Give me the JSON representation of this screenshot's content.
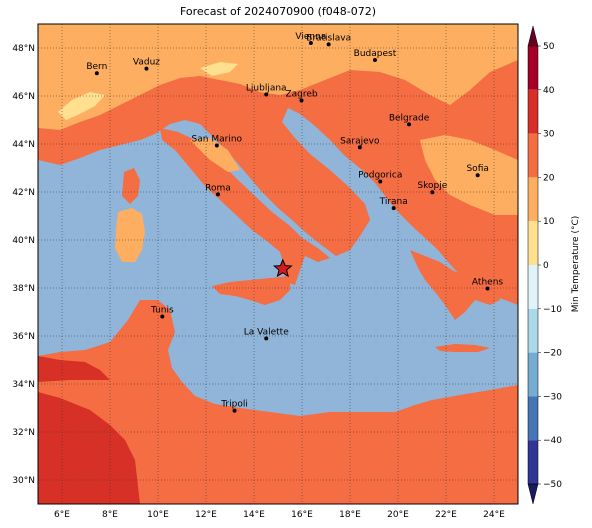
{
  "title": "Forecast of 2024070900 (f048-072)",
  "map": {
    "lon_range": [
      5,
      25
    ],
    "lat_range": [
      29,
      49
    ],
    "lon_ticks": [
      {
        "value": 6,
        "label": "6°E"
      },
      {
        "value": 8,
        "label": "8°E"
      },
      {
        "value": 10,
        "label": "10°E"
      },
      {
        "value": 12,
        "label": "12°E"
      },
      {
        "value": 14,
        "label": "14°E"
      },
      {
        "value": 16,
        "label": "16°E"
      },
      {
        "value": 18,
        "label": "18°E"
      },
      {
        "value": 20,
        "label": "20°E"
      },
      {
        "value": 22,
        "label": "22°E"
      },
      {
        "value": 24,
        "label": "24°E"
      }
    ],
    "lat_ticks": [
      {
        "value": 48,
        "label": "48°N"
      },
      {
        "value": 46,
        "label": "46°N"
      },
      {
        "value": 44,
        "label": "44°N"
      },
      {
        "value": 42,
        "label": "42°N"
      },
      {
        "value": 40,
        "label": "40°N"
      },
      {
        "value": 38,
        "label": "38°N"
      },
      {
        "value": 36,
        "label": "36°N"
      },
      {
        "value": 34,
        "label": "34°N"
      },
      {
        "value": 32,
        "label": "32°N"
      },
      {
        "value": 30,
        "label": "30°N"
      }
    ],
    "cities": [
      {
        "name": "Bern",
        "lon": 7.45,
        "lat": 46.95
      },
      {
        "name": "Vaduz",
        "lon": 9.52,
        "lat": 47.14
      },
      {
        "name": "Vienna",
        "lon": 16.37,
        "lat": 48.21
      },
      {
        "name": "Bratislava",
        "lon": 17.11,
        "lat": 48.15
      },
      {
        "name": "Budapest",
        "lon": 19.04,
        "lat": 47.5
      },
      {
        "name": "Ljubljana",
        "lon": 14.51,
        "lat": 46.06
      },
      {
        "name": "Zagreb",
        "lon": 15.98,
        "lat": 45.81
      },
      {
        "name": "San Marino",
        "lon": 12.45,
        "lat": 43.94
      },
      {
        "name": "Belgrade",
        "lon": 20.46,
        "lat": 44.82
      },
      {
        "name": "Sarajevo",
        "lon": 18.41,
        "lat": 43.86
      },
      {
        "name": "Sofia",
        "lon": 23.32,
        "lat": 42.7
      },
      {
        "name": "Podgorica",
        "lon": 19.26,
        "lat": 42.44
      },
      {
        "name": "Skopje",
        "lon": 21.43,
        "lat": 41.99
      },
      {
        "name": "Roma",
        "lon": 12.5,
        "lat": 41.9
      },
      {
        "name": "Tirana",
        "lon": 19.82,
        "lat": 41.33
      },
      {
        "name": "Athens",
        "lon": 23.73,
        "lat": 37.98
      },
      {
        "name": "Tunis",
        "lon": 10.18,
        "lat": 36.81
      },
      {
        "name": "La Valette",
        "lon": 14.51,
        "lat": 35.9
      },
      {
        "name": "Tripoli",
        "lon": 13.19,
        "lat": 32.89
      }
    ],
    "marker": {
      "name": "star-marker",
      "lon": 15.2,
      "lat": 38.8,
      "color": "#d7191c"
    }
  },
  "colorbar": {
    "label": "Min Temperature (°C)",
    "ticks": [
      "50",
      "40",
      "30",
      "20",
      "10",
      "0",
      "−10",
      "−20",
      "−30",
      "−40",
      "−50"
    ],
    "colors_top_to_bottom": [
      "#a50026",
      "#d73027",
      "#f46d43",
      "#fdae61",
      "#fee090",
      "#e0f3f8",
      "#abd9e9",
      "#74add1",
      "#4575b4",
      "#313695"
    ]
  },
  "colors": {
    "sea": "#91b5d9",
    "land_warm": "#f46d43",
    "land_mild": "#fdae61",
    "land_cool": "#fee090",
    "land_hot": "#d73027"
  }
}
